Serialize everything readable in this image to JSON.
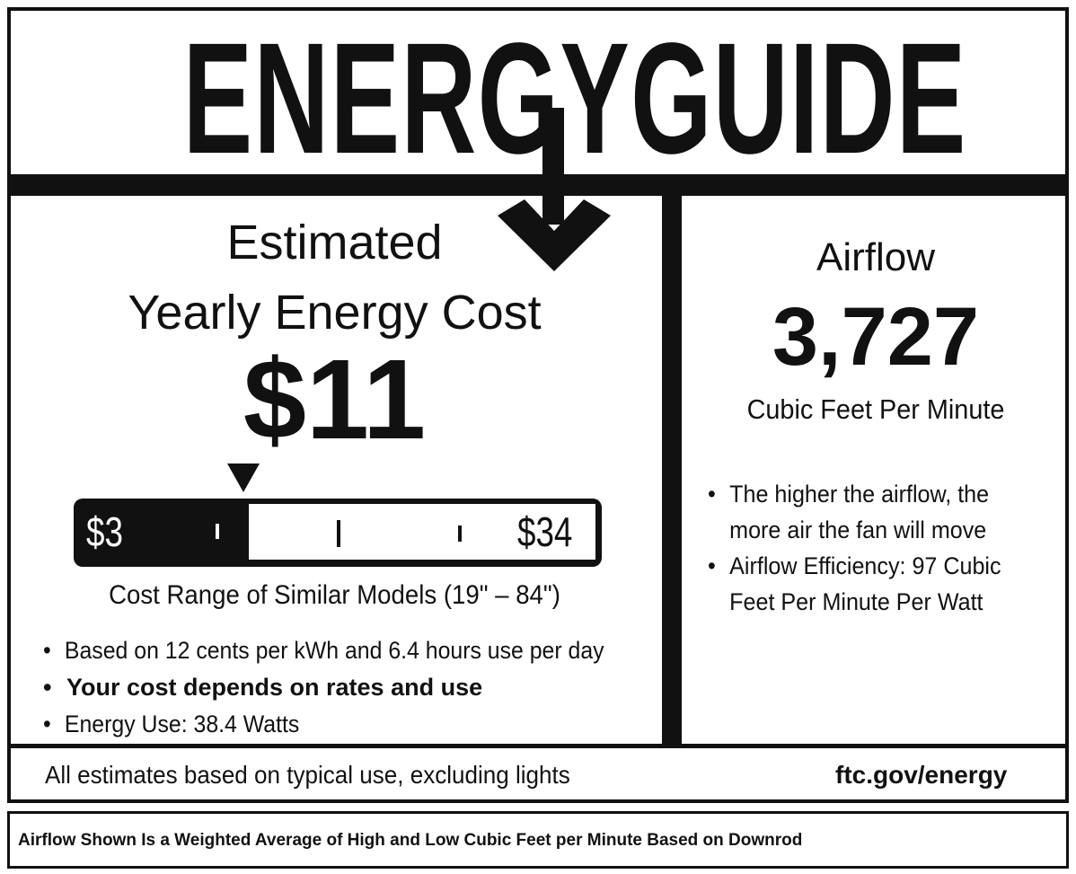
{
  "title": "ENERGYGUIDE",
  "left": {
    "heading1": "Estimated",
    "heading2": "Yearly Energy Cost",
    "cost": "$11",
    "range": {
      "low": "$3",
      "high": "$34",
      "value": 11,
      "label": "Cost Range of Similar Models (19\" – 84\")"
    },
    "bullets": [
      "Based on 12 cents per kWh and 6.4 hours use per day",
      "Your cost depends on rates and use",
      "Energy Use: 38.4 Watts"
    ]
  },
  "right": {
    "heading": "Airflow",
    "value": "3,727",
    "unit": "Cubic Feet Per Minute",
    "bullets": [
      "The higher the airflow, the more air the fan will move",
      "Airflow Efficiency: 97 Cubic Feet Per Minute Per Watt"
    ]
  },
  "footer": {
    "note": "All estimates based on typical use, excluding lights",
    "link": "ftc.gov/energy"
  },
  "disclaimer": "Airflow Shown Is a Weighted Average of High and Low Cubic Feet per Minute Based on Downrod"
}
